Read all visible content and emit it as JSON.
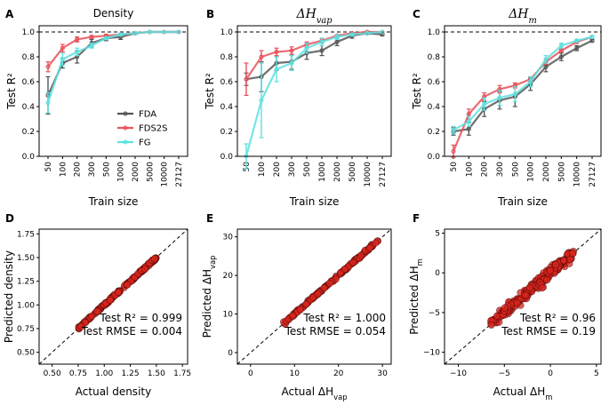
{
  "figure": {
    "legend": [
      {
        "name": "FDA",
        "color": "#555555"
      },
      {
        "name": "FDS2S",
        "color": "#e8525a"
      },
      {
        "name": "FG",
        "color": "#5ee0e0"
      }
    ],
    "scatter_color": "#d7261e"
  },
  "chart_data": [
    {
      "panel": "A",
      "type": "line",
      "title": "Density",
      "title_math": false,
      "xlabel": "Train size",
      "ylabel": "Test R²",
      "x": [
        "50",
        "100",
        "200",
        "300",
        "500",
        "1000",
        "2000",
        "5000",
        "10000",
        "27127"
      ],
      "xtick_labels": [
        "50",
        "100",
        "200",
        "300",
        "500",
        "1000",
        "2000",
        "5000",
        "10000",
        "27127"
      ],
      "ylim": [
        0,
        1.05
      ],
      "yticks": [
        "0.0",
        "0.2",
        "0.4",
        "0.6",
        "0.8",
        "1.0"
      ],
      "reference_line": 1.0,
      "series": [
        {
          "name": "FDA",
          "values": [
            0.49,
            0.75,
            0.8,
            0.91,
            0.95,
            0.96,
            0.99,
            1.0,
            1.0,
            1.0
          ],
          "err": [
            0.15,
            0.04,
            0.05,
            0.03,
            0.02,
            0.02,
            0.01,
            0.0,
            0.0,
            0.0
          ]
        },
        {
          "name": "FDS2S",
          "values": [
            0.72,
            0.87,
            0.94,
            0.96,
            0.97,
            0.98,
            0.99,
            1.0,
            1.0,
            1.0
          ],
          "err": [
            0.04,
            0.03,
            0.02,
            0.01,
            0.01,
            0.01,
            0.0,
            0.0,
            0.0,
            0.0
          ]
        },
        {
          "name": "FG",
          "values": [
            0.43,
            0.78,
            0.84,
            0.89,
            0.95,
            0.98,
            0.99,
            1.0,
            1.0,
            1.0
          ],
          "err": [
            0.08,
            0.05,
            0.03,
            0.02,
            0.01,
            0.01,
            0.0,
            0.0,
            0.0,
            0.0
          ]
        }
      ],
      "legend_position": "center-right"
    },
    {
      "panel": "B",
      "type": "line",
      "title": "ΔH",
      "title_sub": "vap",
      "title_math": true,
      "xlabel": "Train size",
      "ylabel": "Test R²",
      "x": [
        "50",
        "100",
        "200",
        "300",
        "500",
        "1000",
        "2000",
        "5000",
        "10000",
        "27127"
      ],
      "xtick_labels": [
        "50",
        "100",
        "200",
        "300",
        "500",
        "1000",
        "2000",
        "5000",
        "10000",
        "27127"
      ],
      "ylim": [
        0,
        1.05
      ],
      "yticks": [
        "0.0",
        "0.2",
        "0.4",
        "0.6",
        "0.8",
        "1.0"
      ],
      "reference_line": 1.0,
      "series": [
        {
          "name": "FDA",
          "values": [
            0.62,
            0.64,
            0.75,
            0.76,
            0.83,
            0.85,
            0.92,
            0.97,
            0.99,
            0.98
          ],
          "err": [
            0.05,
            0.12,
            0.06,
            0.06,
            0.05,
            0.04,
            0.03,
            0.02,
            0.01,
            0.01
          ]
        },
        {
          "name": "FDS2S",
          "values": [
            0.62,
            0.8,
            0.84,
            0.85,
            0.9,
            0.93,
            0.97,
            0.99,
            1.0,
            1.0
          ],
          "err": [
            0.13,
            0.05,
            0.03,
            0.03,
            0.02,
            0.02,
            0.01,
            0.0,
            0.0,
            0.0
          ]
        },
        {
          "name": "FG",
          "values": [
            0.0,
            0.45,
            0.7,
            0.75,
            0.87,
            0.92,
            0.96,
            0.98,
            0.99,
            1.0
          ],
          "err": [
            0.1,
            0.3,
            0.1,
            0.06,
            0.04,
            0.03,
            0.02,
            0.01,
            0.0,
            0.0
          ]
        }
      ]
    },
    {
      "panel": "C",
      "type": "line",
      "title": "ΔH",
      "title_sub": "m",
      "title_math": true,
      "xlabel": "Train size",
      "ylabel": "Test R²",
      "x": [
        "50",
        "100",
        "200",
        "300",
        "500",
        "1000",
        "2000",
        "5000",
        "10000",
        "27127"
      ],
      "xtick_labels": [
        "50",
        "100",
        "200",
        "300",
        "500",
        "1000",
        "2000",
        "5000",
        "10000",
        "27127"
      ],
      "ylim": [
        0,
        1.05
      ],
      "yticks": [
        "0.0",
        "0.2",
        "0.4",
        "0.6",
        "0.8",
        "1.0"
      ],
      "reference_line": 1.0,
      "series": [
        {
          "name": "FDA",
          "values": [
            0.2,
            0.22,
            0.38,
            0.45,
            0.48,
            0.58,
            0.72,
            0.8,
            0.87,
            0.93
          ],
          "err": [
            0.03,
            0.05,
            0.06,
            0.07,
            0.08,
            0.05,
            0.04,
            0.03,
            0.02,
            0.01
          ]
        },
        {
          "name": "FDS2S",
          "values": [
            0.04,
            0.34,
            0.48,
            0.54,
            0.57,
            0.62,
            0.76,
            0.85,
            0.92,
            0.96
          ],
          "err": [
            0.05,
            0.04,
            0.03,
            0.03,
            0.02,
            0.02,
            0.02,
            0.01,
            0.01,
            0.0
          ]
        },
        {
          "name": "FG",
          "values": [
            0.21,
            0.28,
            0.42,
            0.47,
            0.5,
            0.6,
            0.78,
            0.89,
            0.93,
            0.96
          ],
          "err": [
            0.03,
            0.04,
            0.05,
            0.06,
            0.06,
            0.04,
            0.03,
            0.02,
            0.01,
            0.01
          ]
        }
      ]
    },
    {
      "panel": "D",
      "type": "scatter",
      "xlabel": "Actual density",
      "xlabel_math": false,
      "ylabel": "Predicted density",
      "ylabel_math": false,
      "xlim": [
        0.375,
        1.8
      ],
      "ylim": [
        0.375,
        1.8
      ],
      "ticks": [
        0.5,
        0.75,
        1.0,
        1.25,
        1.5,
        1.75
      ],
      "tick_labels": [
        "0.50",
        "0.75",
        "1.00",
        "1.25",
        "1.50",
        "1.75"
      ],
      "parity_line": true,
      "annotations": [
        "Test R² = 0.999",
        "Test RMSE = 0.004"
      ],
      "point_range": [
        0.75,
        1.5
      ],
      "spread": 0.006,
      "n_points": 170
    },
    {
      "panel": "E",
      "type": "scatter",
      "xlabel": "Actual ΔH",
      "xlabel_sub": "vap",
      "xlabel_math": true,
      "ylabel": "Predicted ΔH",
      "ylabel_sub": "vap",
      "ylabel_math": true,
      "xlim": [
        -3,
        32
      ],
      "ylim": [
        -3,
        32
      ],
      "ticks": [
        0,
        10,
        20,
        30
      ],
      "tick_labels": [
        "0",
        "10",
        "20",
        "30"
      ],
      "parity_line": true,
      "annotations": [
        "Test R² = 1.000",
        "Test RMSE = 0.054"
      ],
      "point_range": [
        7.5,
        29
      ],
      "spread": 0.15,
      "n_points": 140
    },
    {
      "panel": "F",
      "type": "scatter",
      "xlabel": "Actual ΔH",
      "xlabel_sub": "m",
      "xlabel_math": true,
      "ylabel": "Predicted ΔH",
      "ylabel_sub": "m",
      "ylabel_math": true,
      "xlim": [
        -11.5,
        5.5
      ],
      "ylim": [
        -11.5,
        5.5
      ],
      "ticks": [
        -10,
        -5,
        0,
        5
      ],
      "tick_labels": [
        "−10",
        "−5",
        "0",
        "5"
      ],
      "parity_line": true,
      "annotations": [
        "Test R² = 0.96",
        "Test RMSE = 0.19"
      ],
      "point_range": [
        -6.5,
        2.5
      ],
      "spread": 0.35,
      "n_points": 220
    }
  ]
}
